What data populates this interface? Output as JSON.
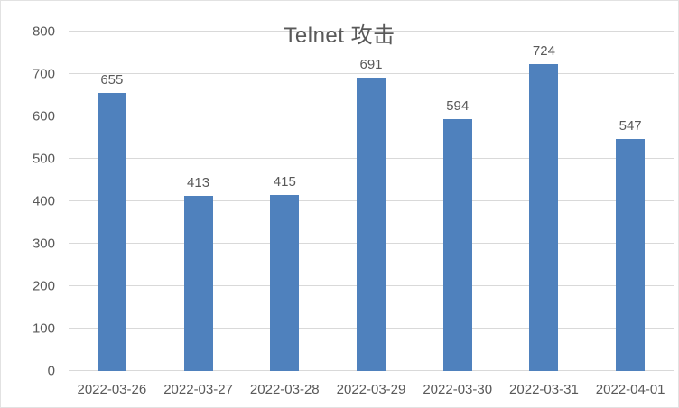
{
  "chart_data": {
    "type": "bar",
    "title": "Telnet 攻击",
    "categories": [
      "2022-03-26",
      "2022-03-27",
      "2022-03-28",
      "2022-03-29",
      "2022-03-30",
      "2022-03-31",
      "2022-04-01"
    ],
    "values": [
      655,
      413,
      415,
      691,
      594,
      724,
      547
    ],
    "data_labels": [
      "655",
      "413",
      "415",
      "691",
      "594",
      "724",
      "547"
    ],
    "xlabel": "",
    "ylabel": "",
    "ylim": [
      0,
      800
    ],
    "ytick_interval": 100,
    "ytick_labels": [
      "0",
      "100",
      "200",
      "300",
      "400",
      "500",
      "600",
      "700",
      "800"
    ],
    "grid": true,
    "legend": false,
    "colors": {
      "bar": "#4F81BD",
      "gridline": "#d9d9d9",
      "text": "#595959",
      "background": "#ffffff"
    }
  }
}
